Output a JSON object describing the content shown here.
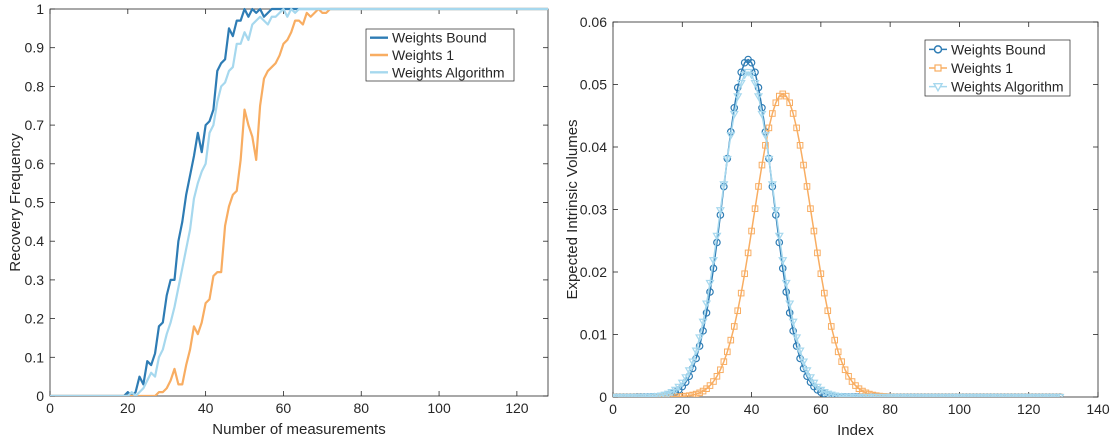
{
  "colors": {
    "bound": "#2E7CB4",
    "one": "#F8AD62",
    "alg": "#A6D8EE",
    "axis": "#262626",
    "bg": "#ffffff"
  },
  "chart_data": [
    {
      "type": "line",
      "title": "",
      "xlabel": "Number of measurements",
      "ylabel": "Recovery Frequency",
      "xlim": [
        0,
        128
      ],
      "ylim": [
        0,
        1
      ],
      "xticks": [
        "0",
        "20",
        "40",
        "60",
        "80",
        "100",
        "120"
      ],
      "yticks": [
        "0",
        "0.1",
        "0.2",
        "0.3",
        "0.4",
        "0.5",
        "0.6",
        "0.7",
        "0.8",
        "0.9",
        "1"
      ],
      "grid": false,
      "legend_position": "top-right",
      "series": [
        {
          "name": "Weights Bound",
          "color_key": "bound",
          "x": [
            0,
            19,
            20,
            21,
            22,
            23,
            24,
            25,
            26,
            27,
            28,
            29,
            30,
            31,
            32,
            33,
            34,
            35,
            36,
            37,
            38,
            39,
            40,
            41,
            42,
            43,
            44,
            45,
            46,
            47,
            48,
            49,
            50,
            51,
            52,
            53,
            54,
            55,
            56,
            57,
            58,
            59,
            60,
            128
          ],
          "y": [
            0,
            0,
            0.01,
            0,
            0.01,
            0.05,
            0.03,
            0.09,
            0.08,
            0.11,
            0.18,
            0.19,
            0.26,
            0.3,
            0.3,
            0.4,
            0.45,
            0.52,
            0.57,
            0.62,
            0.68,
            0.63,
            0.7,
            0.71,
            0.74,
            0.84,
            0.86,
            0.87,
            0.95,
            0.93,
            0.97,
            0.97,
            1.0,
            0.98,
            1.0,
            0.99,
            1.0,
            0.98,
            0.99,
            1.0,
            1.0,
            1.0,
            1.0,
            1.0
          ]
        },
        {
          "name": "Weights 1",
          "color_key": "one",
          "x": [
            0,
            25,
            26,
            27,
            28,
            29,
            30,
            31,
            32,
            33,
            34,
            35,
            36,
            37,
            38,
            39,
            40,
            41,
            42,
            43,
            44,
            45,
            46,
            47,
            48,
            49,
            50,
            51,
            52,
            53,
            54,
            55,
            56,
            57,
            58,
            59,
            60,
            61,
            62,
            63,
            64,
            65,
            66,
            67,
            68,
            69,
            70,
            71,
            72,
            128
          ],
          "y": [
            0,
            0,
            0,
            0,
            0.01,
            0.01,
            0.02,
            0.04,
            0.07,
            0.03,
            0.03,
            0.08,
            0.12,
            0.18,
            0.16,
            0.19,
            0.24,
            0.25,
            0.31,
            0.32,
            0.32,
            0.44,
            0.49,
            0.52,
            0.53,
            0.61,
            0.74,
            0.7,
            0.67,
            0.61,
            0.75,
            0.82,
            0.84,
            0.85,
            0.86,
            0.88,
            0.91,
            0.92,
            0.94,
            0.97,
            0.97,
            0.96,
            0.99,
            0.98,
            0.99,
            1.0,
            0.99,
            0.99,
            1.0,
            1.0
          ]
        },
        {
          "name": "Weights Algorithm",
          "color_key": "alg",
          "x": [
            0,
            20,
            21,
            22,
            23,
            24,
            25,
            26,
            27,
            28,
            29,
            30,
            31,
            32,
            33,
            34,
            35,
            36,
            37,
            38,
            39,
            40,
            41,
            42,
            43,
            44,
            45,
            46,
            47,
            48,
            49,
            50,
            51,
            52,
            53,
            54,
            55,
            56,
            57,
            58,
            59,
            60,
            61,
            62,
            63,
            64,
            128
          ],
          "y": [
            0,
            0,
            0.01,
            0,
            0.01,
            0.02,
            0.04,
            0.06,
            0.05,
            0.1,
            0.12,
            0.16,
            0.19,
            0.23,
            0.28,
            0.33,
            0.38,
            0.43,
            0.51,
            0.55,
            0.58,
            0.6,
            0.68,
            0.7,
            0.76,
            0.8,
            0.81,
            0.84,
            0.85,
            0.91,
            0.91,
            0.94,
            0.92,
            0.96,
            0.97,
            0.98,
            0.97,
            0.96,
            0.98,
            0.98,
            0.99,
            1.0,
            0.98,
            1.0,
            0.99,
            1.0,
            1.0
          ]
        }
      ]
    },
    {
      "type": "line",
      "title": "",
      "xlabel": "Index",
      "ylabel": "Expected Intrinsic Volumes",
      "xlim": [
        0,
        140
      ],
      "ylim": [
        0,
        0.06
      ],
      "xticks": [
        "0",
        "20",
        "40",
        "60",
        "80",
        "100",
        "120",
        "140"
      ],
      "yticks": [
        "0",
        "0.01",
        "0.02",
        "0.03",
        "0.04",
        "0.05",
        "0.06"
      ],
      "grid": false,
      "legend_position": "top-right",
      "markers": "every index 0-129",
      "series": [
        {
          "name": "Weights Bound",
          "color_key": "bound",
          "marker": "circle",
          "x_start": 0,
          "x_end": 129,
          "peak_x": 39,
          "peak_y": 0.054,
          "sigma": 7.2
        },
        {
          "name": "Weights 1",
          "color_key": "one",
          "marker": "square",
          "x_start": 0,
          "x_end": 129,
          "peak_x": 49,
          "peak_y": 0.0485,
          "sigma": 8.2
        },
        {
          "name": "Weights Algorithm",
          "color_key": "alg",
          "marker": "triangle-down",
          "x_start": 0,
          "x_end": 129,
          "peak_x": 39,
          "peak_y": 0.052,
          "sigma": 7.6
        }
      ]
    }
  ]
}
